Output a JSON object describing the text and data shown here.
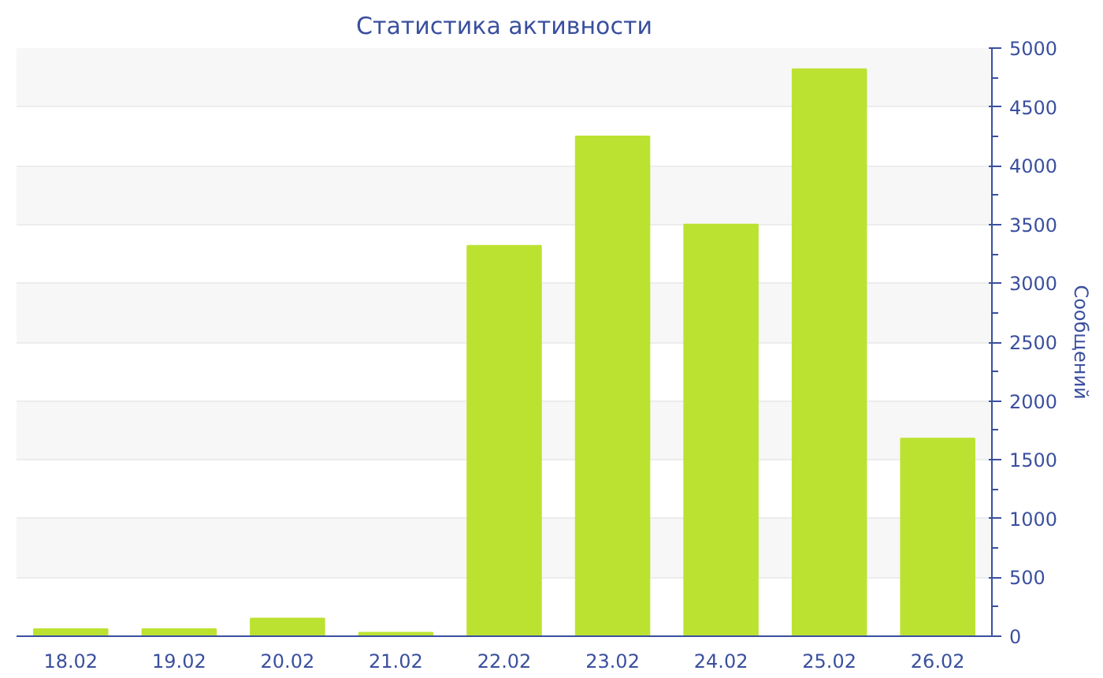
{
  "chart_data": {
    "type": "bar",
    "title": "Статистика активности",
    "ylabel": "Сообщений",
    "categories": [
      "18.02",
      "19.02",
      "20.02",
      "21.02",
      "22.02",
      "23.02",
      "24.02",
      "25.02",
      "26.02"
    ],
    "values": [
      60,
      60,
      150,
      30,
      3320,
      4250,
      3500,
      4820,
      1680
    ],
    "color": "#bce231",
    "ylim": [
      0,
      5000
    ],
    "yticks": [
      0,
      500,
      1000,
      1500,
      2000,
      2500,
      3000,
      3500,
      4000,
      4500,
      5000
    ],
    "grid": "y"
  }
}
